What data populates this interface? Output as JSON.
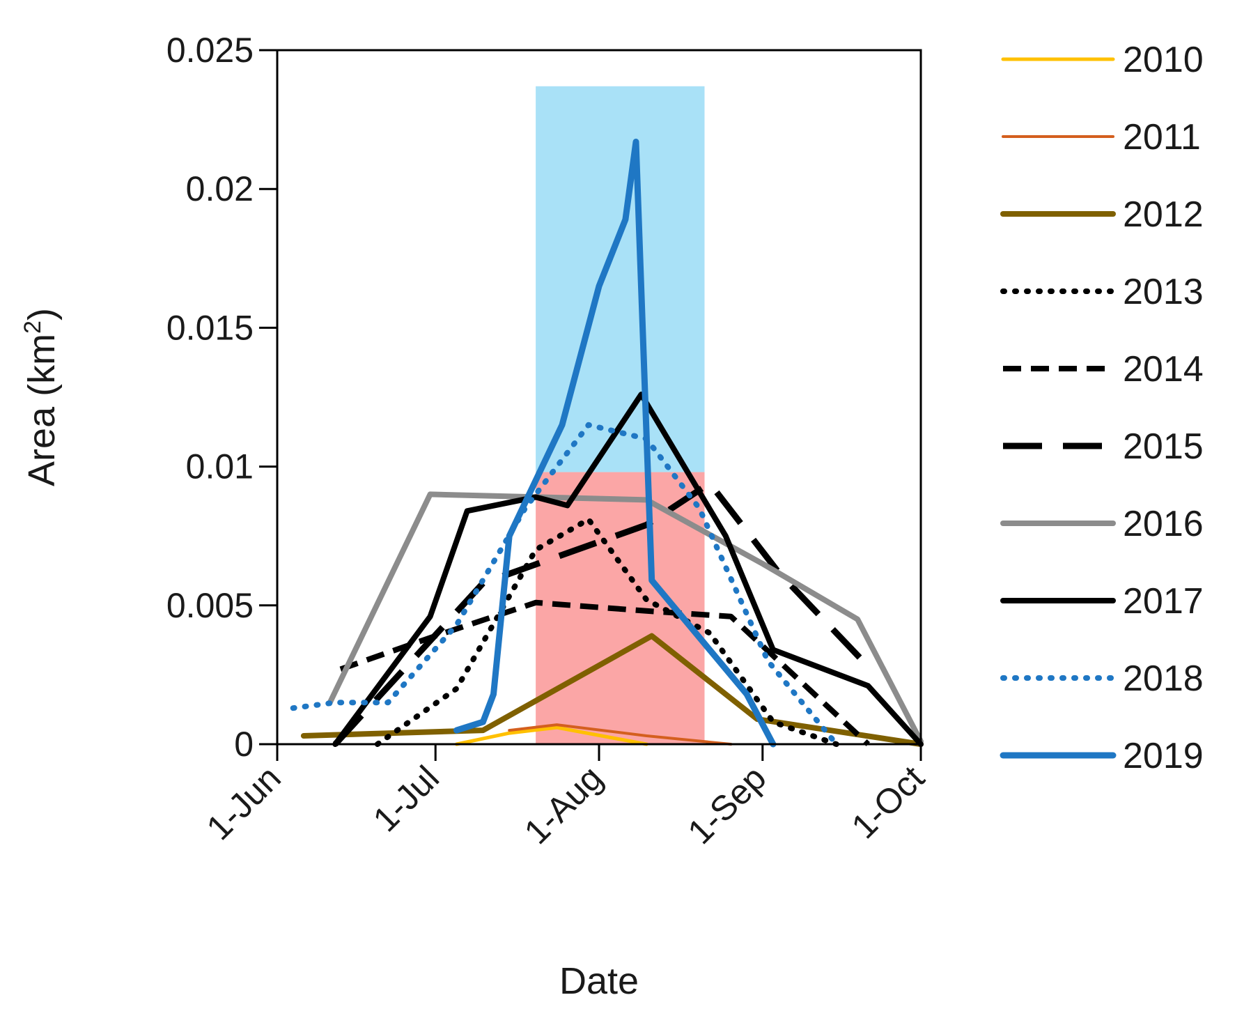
{
  "chart_data": {
    "type": "line",
    "xlabel": "Date",
    "ylabel": "Area (km",
    "ylabel_sup": "2",
    "ylabel_close": ")",
    "ylim": [
      0,
      0.025
    ],
    "yticks": [
      {
        "value": 0,
        "label": "0"
      },
      {
        "value": 0.005,
        "label": "0.005"
      },
      {
        "value": 0.01,
        "label": "0.01"
      },
      {
        "value": 0.015,
        "label": "0.015"
      },
      {
        "value": 0.02,
        "label": "0.02"
      },
      {
        "value": 0.025,
        "label": "0.025"
      }
    ],
    "xlim": [
      "2021-06-01",
      "2021-10-01"
    ],
    "xticks": [
      {
        "value": "2021-06-01",
        "label": "1-Jun"
      },
      {
        "value": "2021-07-01",
        "label": "1-Jul"
      },
      {
        "value": "2021-08-01",
        "label": "1-Aug"
      },
      {
        "value": "2021-09-01",
        "label": "1-Sep"
      },
      {
        "value": "2021-10-01",
        "label": "1-Oct"
      }
    ],
    "shaded_regions": [
      {
        "x": [
          "2021-07-20",
          "2021-08-21"
        ],
        "y": [
          0.0098,
          0.0237
        ],
        "color": "#a9e1f7"
      },
      {
        "x": [
          "2021-07-20",
          "2021-08-21"
        ],
        "y": [
          0,
          0.0098
        ],
        "color": "#fba6a6"
      }
    ],
    "legend_position": "right",
    "series": [
      {
        "name": "2010",
        "color": "#ffc000",
        "width": 5,
        "dash": "solid",
        "x": [
          "2021-07-05",
          "2021-07-15",
          "2021-07-24",
          "2021-08-10"
        ],
        "y": [
          0.0,
          0.0004,
          0.0006,
          0.0
        ]
      },
      {
        "name": "2011",
        "color": "#d45f1e",
        "width": 4,
        "dash": "solid",
        "x": [
          "2021-07-15",
          "2021-07-24",
          "2021-08-10",
          "2021-08-26"
        ],
        "y": [
          0.0005,
          0.0007,
          0.0003,
          0.0
        ]
      },
      {
        "name": "2012",
        "color": "#7f6000",
        "width": 8,
        "dash": "solid",
        "x": [
          "2021-06-06",
          "2021-07-10",
          "2021-08-11",
          "2021-08-31",
          "2021-10-01"
        ],
        "y": [
          0.0003,
          0.0005,
          0.0039,
          0.0009,
          0.0
        ]
      },
      {
        "name": "2013",
        "color": "#000000",
        "width": 8,
        "dash": "dot",
        "x": [
          "2021-06-20",
          "2021-07-05",
          "2021-07-20",
          "2021-07-30",
          "2021-08-10",
          "2021-08-22",
          "2021-09-03",
          "2021-09-15"
        ],
        "y": [
          0.0,
          0.002,
          0.007,
          0.0081,
          0.0052,
          0.004,
          0.0008,
          0.0
        ]
      },
      {
        "name": "2014",
        "color": "#000000",
        "width": 8,
        "dash": "dash",
        "x": [
          "2021-06-13",
          "2021-07-01",
          "2021-07-20",
          "2021-08-10",
          "2021-08-26",
          "2021-09-21"
        ],
        "y": [
          0.0027,
          0.0039,
          0.0051,
          0.0048,
          0.0046,
          0.0
        ]
      },
      {
        "name": "2015",
        "color": "#000000",
        "width": 9,
        "dash": "longdash",
        "x": [
          "2021-06-12",
          "2021-07-10",
          "2021-08-10",
          "2021-08-22",
          "2021-09-04",
          "2021-09-21"
        ],
        "y": [
          0.0,
          0.0058,
          0.0079,
          0.0094,
          0.0062,
          0.0028
        ]
      },
      {
        "name": "2016",
        "color": "#8c8c8c",
        "width": 8,
        "dash": "solid",
        "x": [
          "2021-06-11",
          "2021-06-30",
          "2021-08-10",
          "2021-09-01",
          "2021-09-19",
          "2021-10-01"
        ],
        "y": [
          0.0015,
          0.009,
          0.0088,
          0.0065,
          0.0045,
          0.0001
        ]
      },
      {
        "name": "2017",
        "color": "#000000",
        "width": 8,
        "dash": "solid",
        "x": [
          "2021-06-12",
          "2021-06-30",
          "2021-07-07",
          "2021-07-20",
          "2021-07-26",
          "2021-08-09",
          "2021-08-25",
          "2021-09-03",
          "2021-09-21",
          "2021-10-01"
        ],
        "y": [
          0.0,
          0.0046,
          0.0084,
          0.0089,
          0.0086,
          0.0126,
          0.0075,
          0.0034,
          0.0021,
          0.0
        ]
      },
      {
        "name": "2018",
        "color": "#1f77c4",
        "width": 8,
        "dash": "dot",
        "x": [
          "2021-06-04",
          "2021-06-12",
          "2021-06-22",
          "2021-07-05",
          "2021-07-18",
          "2021-07-30",
          "2021-08-10",
          "2021-08-20",
          "2021-09-02",
          "2021-09-15"
        ],
        "y": [
          0.0013,
          0.0015,
          0.0015,
          0.0043,
          0.0085,
          0.0115,
          0.011,
          0.0085,
          0.003,
          0.0
        ]
      },
      {
        "name": "2019",
        "color": "#1f77c4",
        "width": 9,
        "dash": "solid",
        "x": [
          "2021-07-05",
          "2021-07-10",
          "2021-07-12",
          "2021-07-15",
          "2021-07-25",
          "2021-08-01",
          "2021-08-06",
          "2021-08-08",
          "2021-08-11",
          "2021-08-29",
          "2021-09-03"
        ],
        "y": [
          0.0005,
          0.0008,
          0.0018,
          0.0075,
          0.0115,
          0.0165,
          0.0189,
          0.0217,
          0.0059,
          0.0018,
          0.0
        ]
      }
    ]
  }
}
